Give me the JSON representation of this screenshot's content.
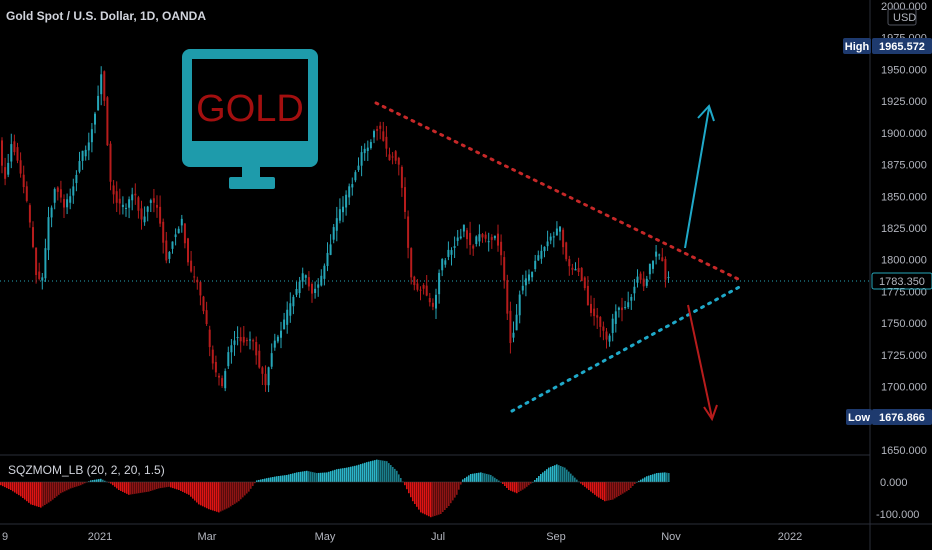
{
  "header": {
    "title": "Gold Spot / U.S. Dollar, 1D, OANDA"
  },
  "price_axis": {
    "currency": "USD",
    "high_label": "High",
    "high_value": "1965.572",
    "low_label": "Low",
    "low_value": "1676.866",
    "last_value": "1783.350"
  },
  "indicator": {
    "label": "SQZMOM_LB (20, 2, 20, 1.5)",
    "tick_labels": [
      "0.000",
      "-100.000"
    ]
  },
  "logo": {
    "text": "GOLD"
  },
  "colors": {
    "up": "#26a6b8",
    "down": "#b71c1c",
    "trend_upper": "#c62828",
    "trend_lower": "#1fa9c9",
    "badge": "#1e3a6e",
    "arrow_up": "#1fa9c9",
    "arrow_down": "#b71c1c"
  },
  "chart_data": {
    "type": "candlestick",
    "y_ticks": [
      "2000.000",
      "1975.000",
      "1950.000",
      "1925.000",
      "1900.000",
      "1875.000",
      "1850.000",
      "1825.000",
      "1800.000",
      "1775.000",
      "1750.000",
      "1725.000",
      "1700.000",
      "1650.000"
    ],
    "x_ticks": [
      "9",
      "2021",
      "Mar",
      "May",
      "Jul",
      "Sep",
      "Nov",
      "2022"
    ],
    "price_path": [
      [
        0,
        1900
      ],
      [
        6,
        1860
      ],
      [
        14,
        1895
      ],
      [
        22,
        1870
      ],
      [
        30,
        1840
      ],
      [
        38,
        1790
      ],
      [
        44,
        1780
      ],
      [
        50,
        1830
      ],
      [
        58,
        1860
      ],
      [
        66,
        1840
      ],
      [
        74,
        1855
      ],
      [
        82,
        1880
      ],
      [
        90,
        1890
      ],
      [
        98,
        1920
      ],
      [
        104,
        1950
      ],
      [
        108,
        1910
      ],
      [
        112,
        1860
      ],
      [
        120,
        1845
      ],
      [
        128,
        1840
      ],
      [
        136,
        1855
      ],
      [
        144,
        1830
      ],
      [
        152,
        1850
      ],
      [
        160,
        1840
      ],
      [
        168,
        1800
      ],
      [
        176,
        1820
      ],
      [
        184,
        1830
      ],
      [
        192,
        1790
      ],
      [
        200,
        1780
      ],
      [
        206,
        1760
      ],
      [
        212,
        1730
      ],
      [
        218,
        1710
      ],
      [
        224,
        1700
      ],
      [
        230,
        1725
      ],
      [
        238,
        1740
      ],
      [
        246,
        1735
      ],
      [
        254,
        1740
      ],
      [
        262,
        1715
      ],
      [
        268,
        1700
      ],
      [
        274,
        1730
      ],
      [
        282,
        1740
      ],
      [
        290,
        1760
      ],
      [
        298,
        1775
      ],
      [
        306,
        1790
      ],
      [
        314,
        1775
      ],
      [
        322,
        1780
      ],
      [
        330,
        1805
      ],
      [
        338,
        1830
      ],
      [
        346,
        1845
      ],
      [
        354,
        1860
      ],
      [
        362,
        1880
      ],
      [
        370,
        1890
      ],
      [
        378,
        1905
      ],
      [
        384,
        1900
      ],
      [
        390,
        1880
      ],
      [
        396,
        1885
      ],
      [
        402,
        1870
      ],
      [
        408,
        1830
      ],
      [
        412,
        1790
      ],
      [
        418,
        1775
      ],
      [
        424,
        1780
      ],
      [
        430,
        1770
      ],
      [
        436,
        1760
      ],
      [
        442,
        1795
      ],
      [
        450,
        1805
      ],
      [
        458,
        1815
      ],
      [
        466,
        1825
      ],
      [
        474,
        1810
      ],
      [
        482,
        1820
      ],
      [
        490,
        1815
      ],
      [
        498,
        1820
      ],
      [
        504,
        1800
      ],
      [
        508,
        1770
      ],
      [
        512,
        1735
      ],
      [
        516,
        1745
      ],
      [
        522,
        1775
      ],
      [
        530,
        1785
      ],
      [
        538,
        1800
      ],
      [
        546,
        1810
      ],
      [
        554,
        1820
      ],
      [
        562,
        1825
      ],
      [
        568,
        1800
      ],
      [
        574,
        1790
      ],
      [
        580,
        1795
      ],
      [
        586,
        1780
      ],
      [
        592,
        1760
      ],
      [
        598,
        1755
      ],
      [
        604,
        1745
      ],
      [
        610,
        1735
      ],
      [
        616,
        1755
      ],
      [
        622,
        1765
      ],
      [
        628,
        1760
      ],
      [
        634,
        1775
      ],
      [
        640,
        1790
      ],
      [
        646,
        1780
      ],
      [
        652,
        1795
      ],
      [
        658,
        1805
      ],
      [
        664,
        1800
      ],
      [
        668,
        1785
      ]
    ],
    "momentum": [
      [
        0,
        -10
      ],
      [
        10,
        -25
      ],
      [
        20,
        -45
      ],
      [
        30,
        -70
      ],
      [
        40,
        -80
      ],
      [
        50,
        -60
      ],
      [
        60,
        -35
      ],
      [
        70,
        -20
      ],
      [
        80,
        -10
      ],
      [
        90,
        5
      ],
      [
        100,
        10
      ],
      [
        110,
        -5
      ],
      [
        118,
        -25
      ],
      [
        128,
        -40
      ],
      [
        138,
        -35
      ],
      [
        148,
        -30
      ],
      [
        158,
        -20
      ],
      [
        168,
        -15
      ],
      [
        178,
        -25
      ],
      [
        188,
        -40
      ],
      [
        198,
        -70
      ],
      [
        208,
        -85
      ],
      [
        218,
        -95
      ],
      [
        228,
        -80
      ],
      [
        238,
        -60
      ],
      [
        248,
        -30
      ],
      [
        256,
        5
      ],
      [
        266,
        12
      ],
      [
        276,
        18
      ],
      [
        286,
        22
      ],
      [
        296,
        30
      ],
      [
        306,
        35
      ],
      [
        316,
        28
      ],
      [
        326,
        30
      ],
      [
        336,
        40
      ],
      [
        346,
        45
      ],
      [
        356,
        52
      ],
      [
        366,
        62
      ],
      [
        376,
        70
      ],
      [
        386,
        65
      ],
      [
        396,
        35
      ],
      [
        404,
        -10
      ],
      [
        412,
        -60
      ],
      [
        420,
        -95
      ],
      [
        430,
        -110
      ],
      [
        440,
        -100
      ],
      [
        448,
        -75
      ],
      [
        456,
        -40
      ],
      [
        462,
        8
      ],
      [
        470,
        25
      ],
      [
        480,
        30
      ],
      [
        490,
        22
      ],
      [
        500,
        0
      ],
      [
        508,
        -25
      ],
      [
        516,
        -35
      ],
      [
        524,
        -20
      ],
      [
        532,
        0
      ],
      [
        540,
        25
      ],
      [
        548,
        45
      ],
      [
        556,
        55
      ],
      [
        564,
        45
      ],
      [
        572,
        20
      ],
      [
        580,
        -5
      ],
      [
        588,
        -25
      ],
      [
        596,
        -45
      ],
      [
        604,
        -60
      ],
      [
        612,
        -55
      ],
      [
        620,
        -40
      ],
      [
        628,
        -25
      ],
      [
        636,
        0
      ],
      [
        646,
        18
      ],
      [
        656,
        28
      ],
      [
        664,
        30
      ],
      [
        668,
        28
      ]
    ]
  }
}
